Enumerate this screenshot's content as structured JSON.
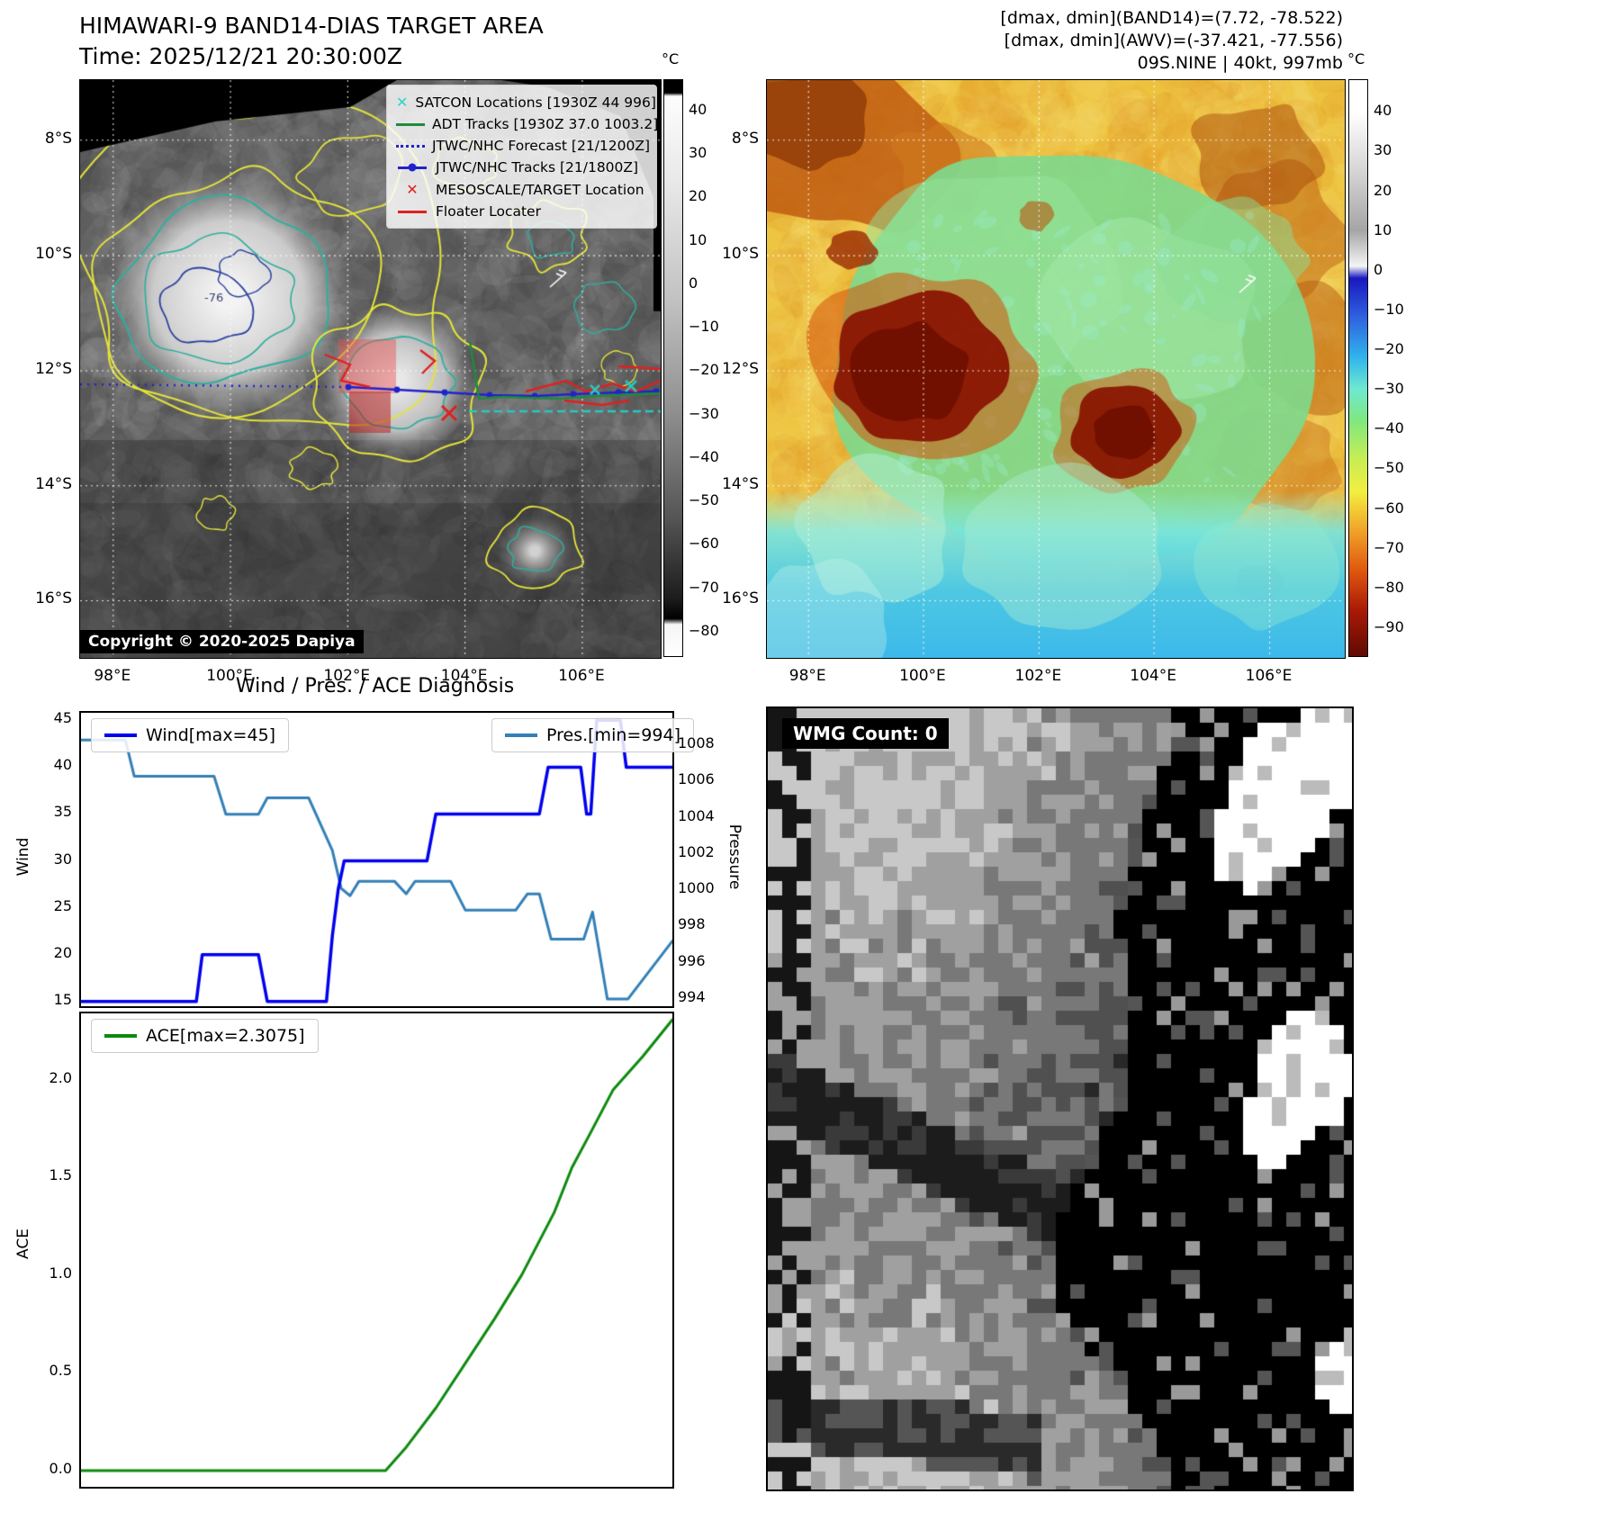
{
  "band14": {
    "title_line1": "HIMAWARI-9 BAND14-DIAS TARGET AREA",
    "title_line2": "Time: 2025/12/21 20:30:00Z",
    "copyright": "Copyright © 2020-2025 Dapiya",
    "contour_label": "-76",
    "legend": [
      {
        "label": "SATCON Locations [1930Z 44 996]",
        "marker": "x",
        "color": "#2dd4c8"
      },
      {
        "label": "ADT Tracks [1930Z 37.0 1003.2]",
        "marker": "line",
        "color": "#208a3c"
      },
      {
        "label": "JTWC/NHC Forecast [21/1200Z]",
        "marker": "dotted",
        "color": "#2222cc"
      },
      {
        "label": "JTWC/NHC Tracks [21/1800Z]",
        "marker": "line-dot",
        "color": "#2222cc"
      },
      {
        "label": "MESOSCALE/TARGET Location",
        "marker": "x",
        "color": "#e02020"
      },
      {
        "label": "Floater Locater",
        "marker": "line",
        "color": "#e02020"
      }
    ],
    "x_ticks": [
      "98°E",
      "100°E",
      "102°E",
      "104°E",
      "106°E"
    ],
    "y_ticks": [
      "8°S",
      "10°S",
      "12°S",
      "14°S",
      "16°S"
    ],
    "colorbar": {
      "unit": "°C",
      "ticks": [
        40,
        30,
        20,
        10,
        0,
        -10,
        -20,
        -30,
        -40,
        -50,
        -60,
        -70,
        -80
      ]
    }
  },
  "awv": {
    "header_line1": "[dmax, dmin](BAND14)=(7.72, -78.522)",
    "header_line2": "[dmax, dmin](AWV)=(-37.421, -77.556)",
    "header_line3": "09S.NINE | 40kt, 997mb",
    "x_ticks": [
      "98°E",
      "100°E",
      "102°E",
      "104°E",
      "106°E"
    ],
    "y_ticks": [
      "8°S",
      "10°S",
      "12°S",
      "14°S",
      "16°S"
    ],
    "colorbar": {
      "unit": "°C",
      "ticks": [
        40,
        30,
        20,
        10,
        0,
        -10,
        -20,
        -30,
        -40,
        -50,
        -60,
        -70,
        -80,
        -90
      ]
    }
  },
  "wmg": {
    "label": "WMG Count: 0"
  },
  "diagnosis": {
    "title": "Wind / Pres. / ACE Diagnosis",
    "wind_ylabel": "Wind",
    "pressure_ylabel": "Pressure",
    "ace_ylabel": "ACE",
    "wind_legend": "Wind[max=45]",
    "pres_legend": "Pres.[min=994]",
    "ace_legend": "ACE[max=2.3075]"
  },
  "chart_data": [
    {
      "type": "line",
      "title": "Wind / Pres. / ACE Diagnosis (top panel: wind & pressure)",
      "x_range": "normalized 0-1 (no x tick labels shown)",
      "series": [
        {
          "name": "Wind",
          "color": "#0000ee",
          "axis": "left",
          "max": 45,
          "ylim": [
            14.5,
            45.8
          ],
          "yticks": [
            15,
            20,
            25,
            30,
            35,
            40,
            45
          ],
          "points": [
            [
              0.0,
              15
            ],
            [
              0.195,
              15
            ],
            [
              0.205,
              20
            ],
            [
              0.3,
              20
            ],
            [
              0.315,
              15
            ],
            [
              0.415,
              15
            ],
            [
              0.425,
              22
            ],
            [
              0.435,
              27
            ],
            [
              0.445,
              30
            ],
            [
              0.585,
              30
            ],
            [
              0.6,
              35
            ],
            [
              0.775,
              35
            ],
            [
              0.79,
              40
            ],
            [
              0.845,
              40
            ],
            [
              0.855,
              35
            ],
            [
              0.862,
              35
            ],
            [
              0.872,
              45
            ],
            [
              0.912,
              45
            ],
            [
              0.922,
              40
            ],
            [
              1.0,
              40
            ]
          ]
        },
        {
          "name": "Pres.",
          "color": "#3380b8",
          "axis": "right",
          "min": 994,
          "ylim": [
            993.6,
            1009.8
          ],
          "yticks": [
            994,
            996,
            998,
            1000,
            1002,
            1004,
            1006,
            1008
          ],
          "points": [
            [
              0.0,
              1008.3
            ],
            [
              0.075,
              1008.3
            ],
            [
              0.09,
              1006.3
            ],
            [
              0.225,
              1006.3
            ],
            [
              0.245,
              1004.2
            ],
            [
              0.3,
              1004.2
            ],
            [
              0.315,
              1005.1
            ],
            [
              0.385,
              1005.1
            ],
            [
              0.425,
              1002.2
            ],
            [
              0.44,
              1000.1
            ],
            [
              0.455,
              999.7
            ],
            [
              0.47,
              1000.5
            ],
            [
              0.53,
              1000.5
            ],
            [
              0.55,
              999.8
            ],
            [
              0.565,
              1000.5
            ],
            [
              0.625,
              1000.5
            ],
            [
              0.65,
              998.9
            ],
            [
              0.735,
              998.9
            ],
            [
              0.755,
              999.8
            ],
            [
              0.775,
              999.8
            ],
            [
              0.795,
              997.3
            ],
            [
              0.85,
              997.3
            ],
            [
              0.865,
              998.8
            ],
            [
              0.89,
              994.0
            ],
            [
              0.925,
              994.0
            ],
            [
              1.0,
              997.2
            ]
          ]
        }
      ]
    },
    {
      "type": "line",
      "title": "Wind / Pres. / ACE Diagnosis (bottom panel: ACE)",
      "x_range": "normalized 0-1 (no x tick labels shown)",
      "series": [
        {
          "name": "ACE",
          "color": "#0d8a0d",
          "max": 2.3075,
          "ylim": [
            -0.083,
            2.34
          ],
          "yticks": [
            0.0,
            0.5,
            1.0,
            1.5,
            2.0
          ],
          "points": [
            [
              0.0,
              0.0
            ],
            [
              0.515,
              0.0
            ],
            [
              0.55,
              0.12
            ],
            [
              0.6,
              0.32
            ],
            [
              0.65,
              0.55
            ],
            [
              0.7,
              0.78
            ],
            [
              0.745,
              1.0
            ],
            [
              0.8,
              1.32
            ],
            [
              0.83,
              1.55
            ],
            [
              0.86,
              1.72
            ],
            [
              0.9,
              1.95
            ],
            [
              0.95,
              2.12
            ],
            [
              1.0,
              2.3075
            ]
          ]
        }
      ]
    }
  ]
}
